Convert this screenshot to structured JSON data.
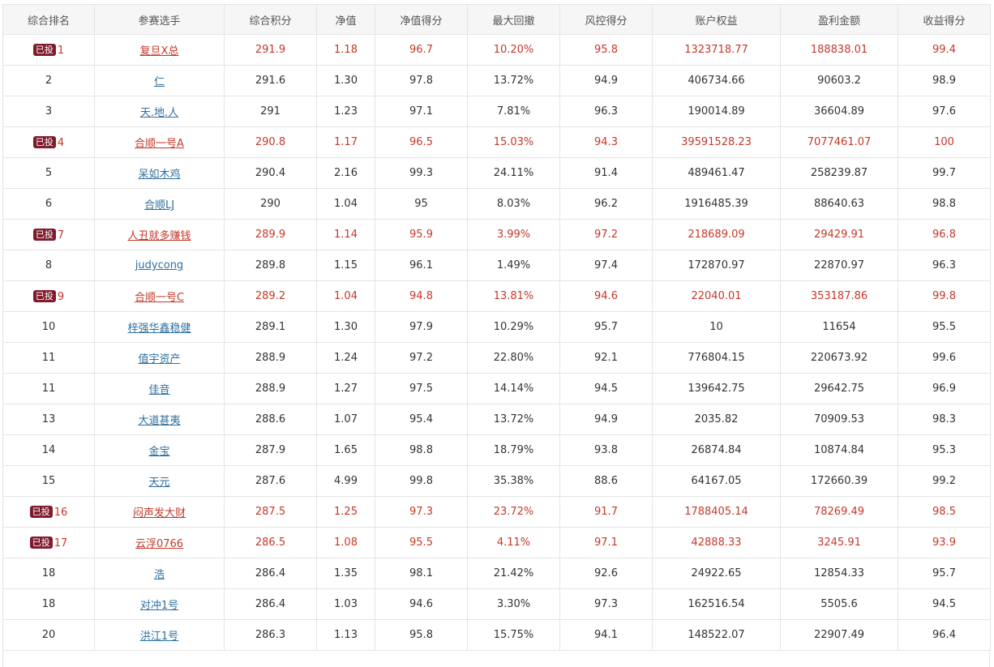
{
  "table": {
    "columns": [
      "综合排名",
      "参赛选手",
      "综合积分",
      "净值",
      "净值得分",
      "最大回撤",
      "风控得分",
      "账户权益",
      "盈利金额",
      "收益得分"
    ],
    "badge_label": "已投",
    "rows": [
      {
        "rank": "1",
        "invested": true,
        "player": "复旦X总",
        "score": "291.9",
        "nav": "1.18",
        "nav_score": "96.7",
        "max_drawdown": "10.20%",
        "risk_score": "95.8",
        "equity": "1323718.77",
        "profit": "188838.01",
        "return_score": "99.4"
      },
      {
        "rank": "2",
        "invested": false,
        "player": "仁",
        "score": "291.6",
        "nav": "1.30",
        "nav_score": "97.8",
        "max_drawdown": "13.72%",
        "risk_score": "94.9",
        "equity": "406734.66",
        "profit": "90603.2",
        "return_score": "98.9"
      },
      {
        "rank": "3",
        "invested": false,
        "player": "天.地.人",
        "score": "291",
        "nav": "1.23",
        "nav_score": "97.1",
        "max_drawdown": "7.81%",
        "risk_score": "96.3",
        "equity": "190014.89",
        "profit": "36604.89",
        "return_score": "97.6"
      },
      {
        "rank": "4",
        "invested": true,
        "player": "合顺一号A",
        "score": "290.8",
        "nav": "1.17",
        "nav_score": "96.5",
        "max_drawdown": "15.03%",
        "risk_score": "94.3",
        "equity": "39591528.23",
        "profit": "7077461.07",
        "return_score": "100"
      },
      {
        "rank": "5",
        "invested": false,
        "player": "呆如木鸡",
        "score": "290.4",
        "nav": "2.16",
        "nav_score": "99.3",
        "max_drawdown": "24.11%",
        "risk_score": "91.4",
        "equity": "489461.47",
        "profit": "258239.87",
        "return_score": "99.7"
      },
      {
        "rank": "6",
        "invested": false,
        "player": "合顺LJ",
        "score": "290",
        "nav": "1.04",
        "nav_score": "95",
        "max_drawdown": "8.03%",
        "risk_score": "96.2",
        "equity": "1916485.39",
        "profit": "88640.63",
        "return_score": "98.8"
      },
      {
        "rank": "7",
        "invested": true,
        "player": "人丑就多赚钱",
        "score": "289.9",
        "nav": "1.14",
        "nav_score": "95.9",
        "max_drawdown": "3.99%",
        "risk_score": "97.2",
        "equity": "218689.09",
        "profit": "29429.91",
        "return_score": "96.8"
      },
      {
        "rank": "8",
        "invested": false,
        "player": "judycong",
        "score": "289.8",
        "nav": "1.15",
        "nav_score": "96.1",
        "max_drawdown": "1.49%",
        "risk_score": "97.4",
        "equity": "172870.97",
        "profit": "22870.97",
        "return_score": "96.3"
      },
      {
        "rank": "9",
        "invested": true,
        "player": "合顺一号C",
        "score": "289.2",
        "nav": "1.04",
        "nav_score": "94.8",
        "max_drawdown": "13.81%",
        "risk_score": "94.6",
        "equity": "22040.01",
        "profit": "353187.86",
        "return_score": "99.8"
      },
      {
        "rank": "10",
        "invested": false,
        "player": "梓强华鑫稳健",
        "score": "289.1",
        "nav": "1.30",
        "nav_score": "97.9",
        "max_drawdown": "10.29%",
        "risk_score": "95.7",
        "equity": "10",
        "profit": "11654",
        "return_score": "95.5"
      },
      {
        "rank": "11",
        "invested": false,
        "player": "值宇资产",
        "score": "288.9",
        "nav": "1.24",
        "nav_score": "97.2",
        "max_drawdown": "22.80%",
        "risk_score": "92.1",
        "equity": "776804.15",
        "profit": "220673.92",
        "return_score": "99.6"
      },
      {
        "rank": "11",
        "invested": false,
        "player": "佳音",
        "score": "288.9",
        "nav": "1.27",
        "nav_score": "97.5",
        "max_drawdown": "14.14%",
        "risk_score": "94.5",
        "equity": "139642.75",
        "profit": "29642.75",
        "return_score": "96.9"
      },
      {
        "rank": "13",
        "invested": false,
        "player": "大道甚夷",
        "score": "288.6",
        "nav": "1.07",
        "nav_score": "95.4",
        "max_drawdown": "13.72%",
        "risk_score": "94.9",
        "equity": "2035.82",
        "profit": "70909.53",
        "return_score": "98.3"
      },
      {
        "rank": "14",
        "invested": false,
        "player": "金宝",
        "score": "287.9",
        "nav": "1.65",
        "nav_score": "98.8",
        "max_drawdown": "18.79%",
        "risk_score": "93.8",
        "equity": "26874.84",
        "profit": "10874.84",
        "return_score": "95.3"
      },
      {
        "rank": "15",
        "invested": false,
        "player": "天元",
        "score": "287.6",
        "nav": "4.99",
        "nav_score": "99.8",
        "max_drawdown": "35.38%",
        "risk_score": "88.6",
        "equity": "64167.05",
        "profit": "172660.39",
        "return_score": "99.2"
      },
      {
        "rank": "16",
        "invested": true,
        "player": "闷声发大财",
        "score": "287.5",
        "nav": "1.25",
        "nav_score": "97.3",
        "max_drawdown": "23.72%",
        "risk_score": "91.7",
        "equity": "1788405.14",
        "profit": "78269.49",
        "return_score": "98.5"
      },
      {
        "rank": "17",
        "invested": true,
        "player": "云浮0766",
        "score": "286.5",
        "nav": "1.08",
        "nav_score": "95.5",
        "max_drawdown": "4.11%",
        "risk_score": "97.1",
        "equity": "42888.33",
        "profit": "3245.91",
        "return_score": "93.9"
      },
      {
        "rank": "18",
        "invested": false,
        "player": "浩",
        "score": "286.4",
        "nav": "1.35",
        "nav_score": "98.1",
        "max_drawdown": "21.42%",
        "risk_score": "92.6",
        "equity": "24922.65",
        "profit": "12854.33",
        "return_score": "95.7"
      },
      {
        "rank": "18",
        "invested": false,
        "player": "对冲1号",
        "score": "286.4",
        "nav": "1.03",
        "nav_score": "94.6",
        "max_drawdown": "3.30%",
        "risk_score": "97.3",
        "equity": "162516.54",
        "profit": "5505.6",
        "return_score": "94.5"
      },
      {
        "rank": "20",
        "invested": false,
        "player": "洪江1号",
        "score": "286.3",
        "nav": "1.13",
        "nav_score": "95.8",
        "max_drawdown": "15.75%",
        "risk_score": "94.1",
        "equity": "148522.07",
        "profit": "22907.49",
        "return_score": "96.4"
      }
    ]
  }
}
